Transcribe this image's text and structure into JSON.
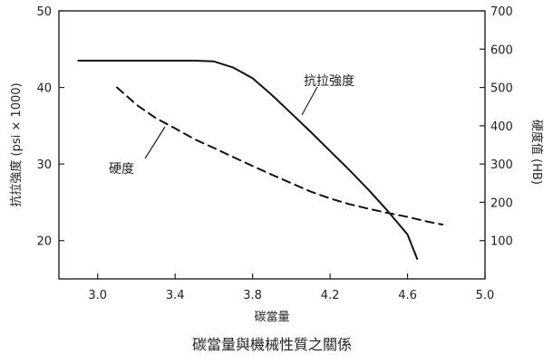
{
  "chart_data": {
    "type": "line",
    "caption": "碳當量與機械性質之關係",
    "xlabel": "碳當量",
    "ylabel_left": "抗拉強度 (psi × 1000)",
    "ylabel_right": "硬度值 (HB)",
    "xlim": [
      2.8,
      5.0
    ],
    "ylim_left": [
      15,
      50
    ],
    "ylim_right": [
      0,
      700
    ],
    "x_ticks": [
      "3.0",
      "3.4",
      "3.8",
      "4.2",
      "4.6",
      "5.0"
    ],
    "y_ticks_left": [
      "20",
      "30",
      "40",
      "50"
    ],
    "y_ticks_right": [
      "100",
      "200",
      "300",
      "400",
      "500",
      "600",
      "700"
    ],
    "grid": false,
    "series": [
      {
        "name": "抗拉強度",
        "axis": "left",
        "style": "solid",
        "x": [
          2.9,
          3.2,
          3.5,
          3.6,
          3.7,
          3.8,
          3.9,
          4.0,
          4.1,
          4.2,
          4.3,
          4.4,
          4.5,
          4.6,
          4.65
        ],
        "y": [
          43.5,
          43.5,
          43.5,
          43.4,
          42.6,
          41.2,
          39.0,
          36.6,
          34.2,
          31.7,
          29.2,
          26.6,
          23.8,
          20.8,
          17.6
        ]
      },
      {
        "name": "硬度",
        "axis": "right",
        "style": "dashed",
        "x": [
          3.1,
          3.2,
          3.3,
          3.4,
          3.5,
          3.6,
          3.7,
          3.8,
          3.9,
          4.0,
          4.1,
          4.2,
          4.3,
          4.4,
          4.5,
          4.6,
          4.7,
          4.78
        ],
        "y": [
          500,
          455,
          420,
          393,
          365,
          342,
          318,
          295,
          272,
          250,
          228,
          210,
          195,
          183,
          172,
          162,
          150,
          142
        ]
      }
    ],
    "annotations": [
      {
        "text": "抗拉強度",
        "series": "抗拉強度"
      },
      {
        "text": "硬度",
        "series": "硬度"
      }
    ]
  }
}
